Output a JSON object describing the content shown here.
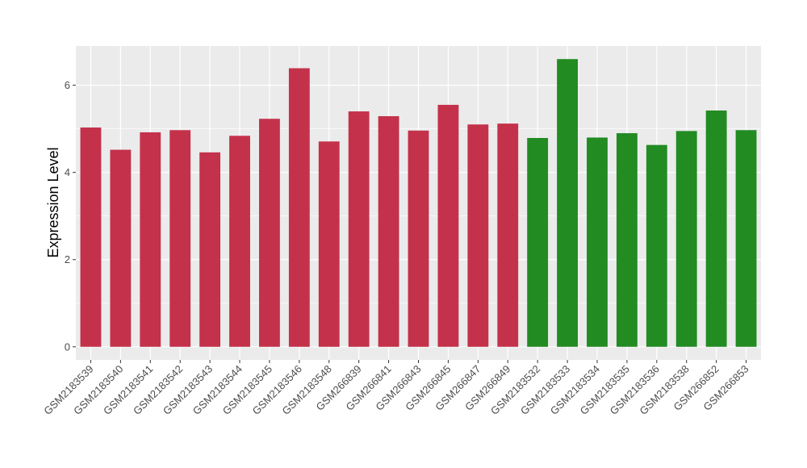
{
  "chart_data": {
    "type": "bar",
    "title": "",
    "xlabel": "",
    "ylabel": "Expression Level",
    "ylim": [
      -0.3,
      6.9
    ],
    "yticks": [
      0,
      2,
      4,
      6
    ],
    "grid": true,
    "legend": "none",
    "categories": [
      "GSM2183539",
      "GSM2183540",
      "GSM2183541",
      "GSM2183542",
      "GSM2183543",
      "GSM2183544",
      "GSM2183545",
      "GSM2183546",
      "GSM2183548",
      "GSM266839",
      "GSM266841",
      "GSM266843",
      "GSM266845",
      "GSM266847",
      "GSM266849",
      "GSM2183532",
      "GSM2183533",
      "GSM2183534",
      "GSM2183535",
      "GSM2183536",
      "GSM2183538",
      "GSM266852",
      "GSM266853"
    ],
    "values": [
      5.03,
      4.52,
      4.92,
      4.97,
      4.46,
      4.84,
      5.23,
      6.39,
      4.71,
      5.4,
      5.29,
      4.96,
      5.55,
      5.1,
      5.12,
      4.79,
      6.6,
      4.8,
      4.9,
      4.63,
      4.95,
      5.42,
      4.97
    ],
    "bar_colors": [
      "#C4314B",
      "#C4314B",
      "#C4314B",
      "#C4314B",
      "#C4314B",
      "#C4314B",
      "#C4314B",
      "#C4314B",
      "#C4314B",
      "#C4314B",
      "#C4314B",
      "#C4314B",
      "#C4314B",
      "#C4314B",
      "#C4314B",
      "#228B22",
      "#228B22",
      "#228B22",
      "#228B22",
      "#228B22",
      "#228B22",
      "#228B22",
      "#228B22"
    ],
    "panel_background": "#EBEBEB",
    "grid_color": "#FFFFFF"
  }
}
